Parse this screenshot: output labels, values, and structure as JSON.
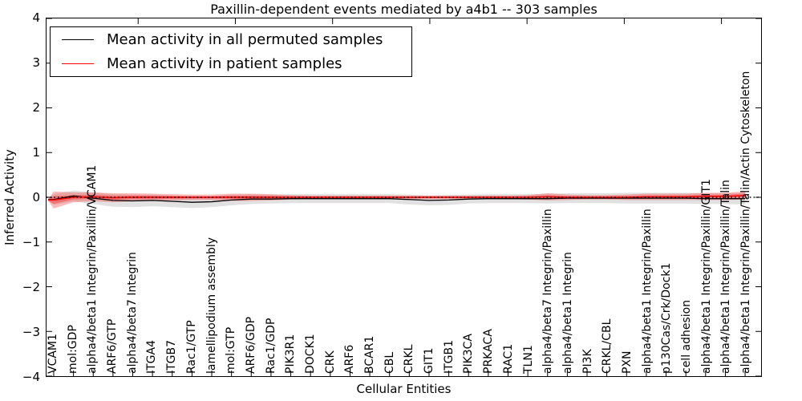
{
  "title": "Paxillin-dependent events mediated by a4b1 -- 303 samples",
  "axes": {
    "xlabel": "Cellular Entities",
    "ylabel": "Inferred Activity",
    "yticks": [
      4,
      3,
      2,
      1,
      0,
      -1,
      -2,
      -3,
      -4
    ]
  },
  "legend": {
    "items": [
      {
        "label": "Mean activity in all permuted samples",
        "color": "#000000"
      },
      {
        "label": "Mean activity in patient samples",
        "color": "#ff0000"
      }
    ]
  },
  "chart_data": {
    "type": "line",
    "title": "Paxillin-dependent events mediated by a4b1 -- 303 samples",
    "xlabel": "Cellular Entities",
    "ylabel": "Inferred Activity",
    "ylim": [
      -4,
      4
    ],
    "yticks": [
      4,
      3,
      2,
      1,
      0,
      -1,
      -2,
      -3,
      -4
    ],
    "grid": false,
    "legend_position": "upper left",
    "categories": [
      "VCAM1",
      "mol:GDP",
      "alpha4/beta1 Integrin/Paxillin/VCAM1",
      "ARF6/GTP",
      "alpha4/beta7 Integrin",
      "ITGA4",
      "ITGB7",
      "Rac1/GTP",
      "lamellipodium assembly",
      "mol:GTP",
      "ARF6/GDP",
      "Rac1/GDP",
      "PIK3R1",
      "DOCK1",
      "CRK",
      "ARF6",
      "BCAR1",
      "CBL",
      "CRKL",
      "GIT1",
      "ITGB1",
      "PIK3CA",
      "PRKACA",
      "RAC1",
      "TLN1",
      "alpha4/beta7 Integrin/Paxillin",
      "alpha4/beta1 Integrin",
      "PI3K",
      "CRKL/CBL",
      "PXN",
      "alpha4/beta1 Integrin/Paxillin",
      "p130Cas/Crk/Dock1",
      "cell adhesion",
      "alpha4/beta1 Integrin/Paxillin/GIT1",
      "alpha4/beta1 Integrin/Paxillin/Talin",
      "alpha4/beta1 Integrin/Paxillin/Talin/Actin Cytoskeleton"
    ],
    "series": [
      {
        "name": "Mean activity in all permuted samples",
        "color": "#000000",
        "line_style": "solid",
        "band_color": "rgba(120,120,120,0.22)",
        "values": [
          -0.05,
          0.03,
          -0.02,
          -0.07,
          -0.08,
          -0.07,
          -0.09,
          -0.11,
          -0.1,
          -0.06,
          -0.04,
          -0.04,
          -0.03,
          -0.03,
          -0.03,
          -0.03,
          -0.03,
          -0.03,
          -0.05,
          -0.07,
          -0.06,
          -0.04,
          -0.03,
          -0.03,
          -0.03,
          -0.03,
          -0.02,
          -0.02,
          -0.02,
          -0.02,
          -0.02,
          -0.02,
          -0.02,
          -0.03,
          -0.03,
          -0.03
        ],
        "band_halfwidth": [
          0.12,
          0.12,
          0.13,
          0.14,
          0.14,
          0.13,
          0.13,
          0.13,
          0.12,
          0.12,
          0.11,
          0.1,
          0.1,
          0.1,
          0.1,
          0.1,
          0.1,
          0.1,
          0.11,
          0.11,
          0.11,
          0.1,
          0.1,
          0.1,
          0.1,
          0.11,
          0.11,
          0.11,
          0.11,
          0.12,
          0.12,
          0.12,
          0.12,
          0.12,
          0.12,
          0.13
        ]
      },
      {
        "name": "Mean activity in patient samples",
        "color": "#ff0000",
        "line_style": "solid",
        "band_color": "rgba(255,0,0,0.27)",
        "values": [
          -0.06,
          0.0,
          0.01,
          -0.01,
          0.0,
          0.0,
          0.0,
          0.0,
          0.0,
          0.0,
          0.0,
          0.0,
          0.0,
          0.0,
          0.0,
          0.0,
          0.0,
          0.0,
          0.0,
          0.0,
          0.0,
          0.0,
          0.0,
          0.0,
          0.0,
          0.01,
          0.0,
          0.0,
          0.0,
          0.0,
          0.01,
          0.01,
          0.01,
          0.02,
          0.02,
          0.04
        ],
        "band_halfwidth": [
          0.19,
          0.11,
          0.1,
          0.1,
          0.09,
          0.08,
          0.07,
          0.06,
          0.06,
          0.08,
          0.08,
          0.07,
          0.05,
          0.04,
          0.04,
          0.04,
          0.04,
          0.04,
          0.04,
          0.04,
          0.04,
          0.04,
          0.04,
          0.04,
          0.05,
          0.08,
          0.06,
          0.05,
          0.05,
          0.06,
          0.07,
          0.07,
          0.07,
          0.08,
          0.08,
          0.09
        ]
      }
    ],
    "reference_line": {
      "y": 0,
      "style": "dotted",
      "color": "#000000"
    }
  }
}
